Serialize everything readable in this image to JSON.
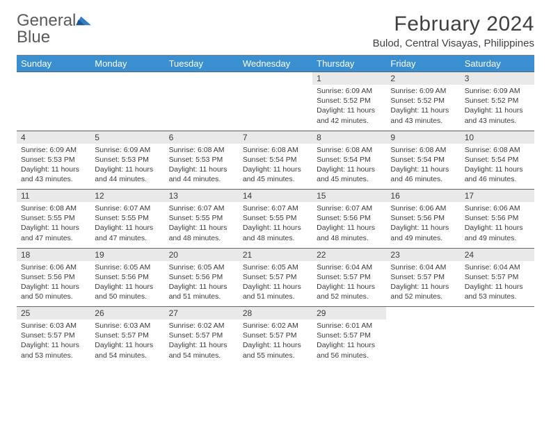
{
  "brand": {
    "word1": "General",
    "word2": "Blue"
  },
  "title": "February 2024",
  "location": "Bulod, Central Visayas, Philippines",
  "colors": {
    "header_bg": "#3a8fd0",
    "header_text": "#ffffff",
    "daynum_bg": "#e9e9e9",
    "border": "#5c6470",
    "text": "#3a3a3a",
    "brand_gray": "#5a5a5a",
    "brand_blue": "#2f7fc2"
  },
  "typography": {
    "title_fontsize": 30,
    "location_fontsize": 15,
    "dayheader_fontsize": 13,
    "daynum_fontsize": 12,
    "body_fontsize": 10.5
  },
  "weekdays": [
    "Sunday",
    "Monday",
    "Tuesday",
    "Wednesday",
    "Thursday",
    "Friday",
    "Saturday"
  ],
  "weeks": [
    [
      null,
      null,
      null,
      null,
      {
        "n": "1",
        "sunrise": "Sunrise: 6:09 AM",
        "sunset": "Sunset: 5:52 PM",
        "d1": "Daylight: 11 hours",
        "d2": "and 42 minutes."
      },
      {
        "n": "2",
        "sunrise": "Sunrise: 6:09 AM",
        "sunset": "Sunset: 5:52 PM",
        "d1": "Daylight: 11 hours",
        "d2": "and 43 minutes."
      },
      {
        "n": "3",
        "sunrise": "Sunrise: 6:09 AM",
        "sunset": "Sunset: 5:52 PM",
        "d1": "Daylight: 11 hours",
        "d2": "and 43 minutes."
      }
    ],
    [
      {
        "n": "4",
        "sunrise": "Sunrise: 6:09 AM",
        "sunset": "Sunset: 5:53 PM",
        "d1": "Daylight: 11 hours",
        "d2": "and 43 minutes."
      },
      {
        "n": "5",
        "sunrise": "Sunrise: 6:09 AM",
        "sunset": "Sunset: 5:53 PM",
        "d1": "Daylight: 11 hours",
        "d2": "and 44 minutes."
      },
      {
        "n": "6",
        "sunrise": "Sunrise: 6:08 AM",
        "sunset": "Sunset: 5:53 PM",
        "d1": "Daylight: 11 hours",
        "d2": "and 44 minutes."
      },
      {
        "n": "7",
        "sunrise": "Sunrise: 6:08 AM",
        "sunset": "Sunset: 5:54 PM",
        "d1": "Daylight: 11 hours",
        "d2": "and 45 minutes."
      },
      {
        "n": "8",
        "sunrise": "Sunrise: 6:08 AM",
        "sunset": "Sunset: 5:54 PM",
        "d1": "Daylight: 11 hours",
        "d2": "and 45 minutes."
      },
      {
        "n": "9",
        "sunrise": "Sunrise: 6:08 AM",
        "sunset": "Sunset: 5:54 PM",
        "d1": "Daylight: 11 hours",
        "d2": "and 46 minutes."
      },
      {
        "n": "10",
        "sunrise": "Sunrise: 6:08 AM",
        "sunset": "Sunset: 5:54 PM",
        "d1": "Daylight: 11 hours",
        "d2": "and 46 minutes."
      }
    ],
    [
      {
        "n": "11",
        "sunrise": "Sunrise: 6:08 AM",
        "sunset": "Sunset: 5:55 PM",
        "d1": "Daylight: 11 hours",
        "d2": "and 47 minutes."
      },
      {
        "n": "12",
        "sunrise": "Sunrise: 6:07 AM",
        "sunset": "Sunset: 5:55 PM",
        "d1": "Daylight: 11 hours",
        "d2": "and 47 minutes."
      },
      {
        "n": "13",
        "sunrise": "Sunrise: 6:07 AM",
        "sunset": "Sunset: 5:55 PM",
        "d1": "Daylight: 11 hours",
        "d2": "and 48 minutes."
      },
      {
        "n": "14",
        "sunrise": "Sunrise: 6:07 AM",
        "sunset": "Sunset: 5:55 PM",
        "d1": "Daylight: 11 hours",
        "d2": "and 48 minutes."
      },
      {
        "n": "15",
        "sunrise": "Sunrise: 6:07 AM",
        "sunset": "Sunset: 5:56 PM",
        "d1": "Daylight: 11 hours",
        "d2": "and 48 minutes."
      },
      {
        "n": "16",
        "sunrise": "Sunrise: 6:06 AM",
        "sunset": "Sunset: 5:56 PM",
        "d1": "Daylight: 11 hours",
        "d2": "and 49 minutes."
      },
      {
        "n": "17",
        "sunrise": "Sunrise: 6:06 AM",
        "sunset": "Sunset: 5:56 PM",
        "d1": "Daylight: 11 hours",
        "d2": "and 49 minutes."
      }
    ],
    [
      {
        "n": "18",
        "sunrise": "Sunrise: 6:06 AM",
        "sunset": "Sunset: 5:56 PM",
        "d1": "Daylight: 11 hours",
        "d2": "and 50 minutes."
      },
      {
        "n": "19",
        "sunrise": "Sunrise: 6:05 AM",
        "sunset": "Sunset: 5:56 PM",
        "d1": "Daylight: 11 hours",
        "d2": "and 50 minutes."
      },
      {
        "n": "20",
        "sunrise": "Sunrise: 6:05 AM",
        "sunset": "Sunset: 5:56 PM",
        "d1": "Daylight: 11 hours",
        "d2": "and 51 minutes."
      },
      {
        "n": "21",
        "sunrise": "Sunrise: 6:05 AM",
        "sunset": "Sunset: 5:57 PM",
        "d1": "Daylight: 11 hours",
        "d2": "and 51 minutes."
      },
      {
        "n": "22",
        "sunrise": "Sunrise: 6:04 AM",
        "sunset": "Sunset: 5:57 PM",
        "d1": "Daylight: 11 hours",
        "d2": "and 52 minutes."
      },
      {
        "n": "23",
        "sunrise": "Sunrise: 6:04 AM",
        "sunset": "Sunset: 5:57 PM",
        "d1": "Daylight: 11 hours",
        "d2": "and 52 minutes."
      },
      {
        "n": "24",
        "sunrise": "Sunrise: 6:04 AM",
        "sunset": "Sunset: 5:57 PM",
        "d1": "Daylight: 11 hours",
        "d2": "and 53 minutes."
      }
    ],
    [
      {
        "n": "25",
        "sunrise": "Sunrise: 6:03 AM",
        "sunset": "Sunset: 5:57 PM",
        "d1": "Daylight: 11 hours",
        "d2": "and 53 minutes."
      },
      {
        "n": "26",
        "sunrise": "Sunrise: 6:03 AM",
        "sunset": "Sunset: 5:57 PM",
        "d1": "Daylight: 11 hours",
        "d2": "and 54 minutes."
      },
      {
        "n": "27",
        "sunrise": "Sunrise: 6:02 AM",
        "sunset": "Sunset: 5:57 PM",
        "d1": "Daylight: 11 hours",
        "d2": "and 54 minutes."
      },
      {
        "n": "28",
        "sunrise": "Sunrise: 6:02 AM",
        "sunset": "Sunset: 5:57 PM",
        "d1": "Daylight: 11 hours",
        "d2": "and 55 minutes."
      },
      {
        "n": "29",
        "sunrise": "Sunrise: 6:01 AM",
        "sunset": "Sunset: 5:57 PM",
        "d1": "Daylight: 11 hours",
        "d2": "and 56 minutes."
      },
      null,
      null
    ]
  ]
}
